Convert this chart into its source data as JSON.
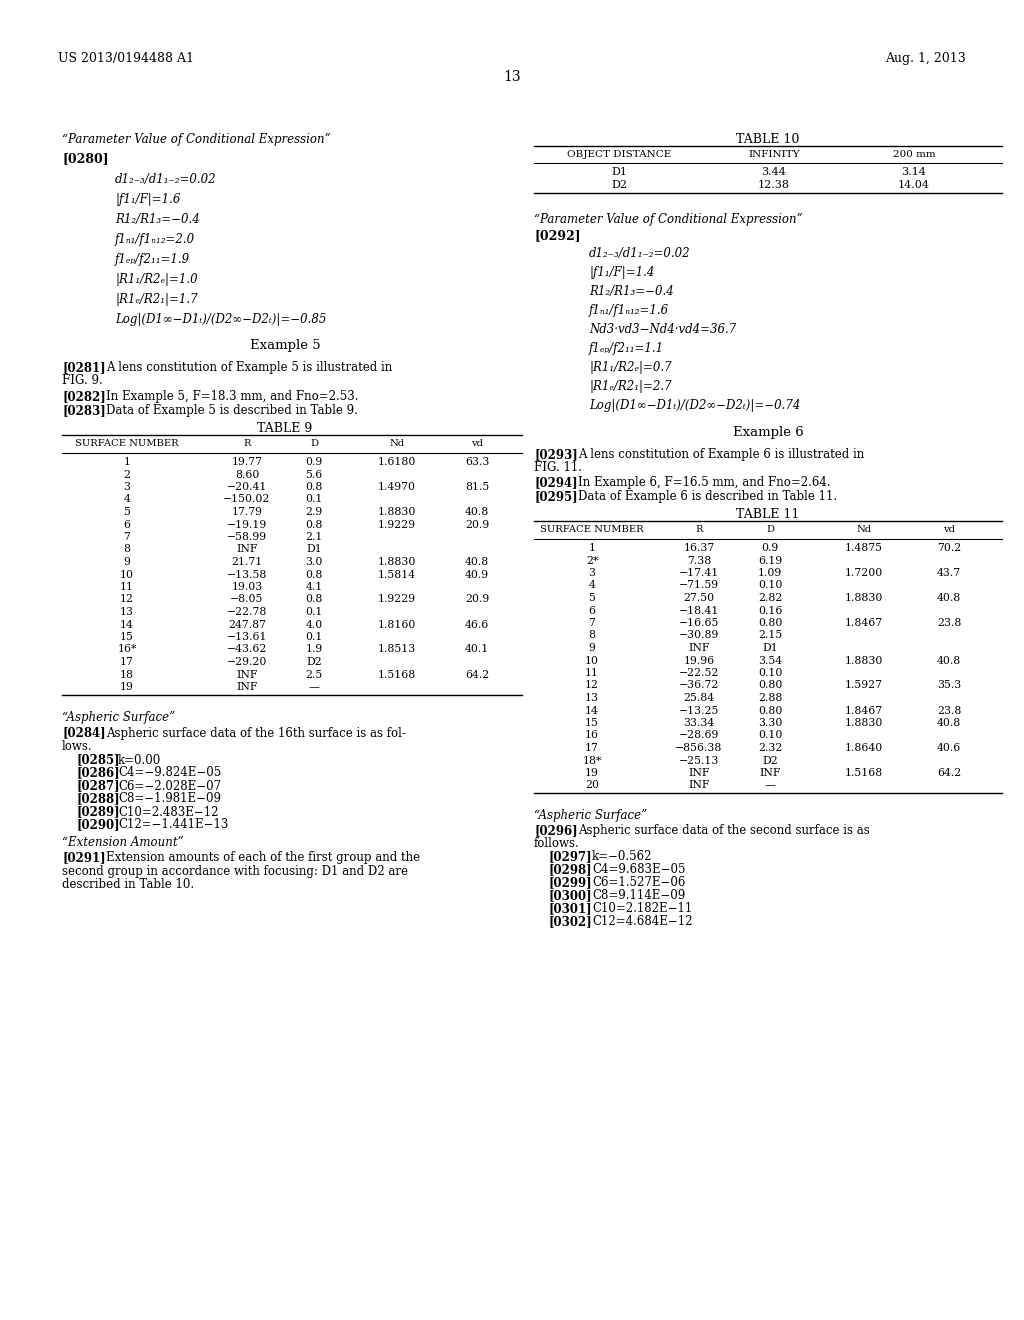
{
  "page_header_left": "US 2013/0194488 A1",
  "page_header_right": "Aug. 1, 2013",
  "page_number": "13",
  "bg_color": "#ffffff",
  "left_col": {
    "section1_title": "“Parameter Value of Conditional Expression”",
    "section1_tag": "[0280]",
    "section1_items": [
      "d1₂₋₃/d1₁₋₂=0.02",
      "|f1₁/F|=1.6",
      "R1₂/R1₃=−0.4",
      "f1ₙ₁/f1ₙ₁₂=2.0",
      "f1ₑₚ/f2₁₁=1.9",
      "|R1₁/R2ₑ|=1.0",
      "|R1ₑ/R2₁|=1.7",
      "Log|(D1∞−D1ₜ)/(D2∞−D2ₜ)|=−0.85"
    ],
    "example5_title": "Example 5",
    "table9_title": "TABLE 9",
    "table9_headers": [
      "SURFACE NUMBER",
      "R",
      "D",
      "Nd",
      "vd"
    ],
    "table9_rows": [
      [
        "1",
        "19.77",
        "0.9",
        "1.6180",
        "63.3"
      ],
      [
        "2",
        "8.60",
        "5.6",
        "",
        ""
      ],
      [
        "3",
        "−20.41",
        "0.8",
        "1.4970",
        "81.5"
      ],
      [
        "4",
        "−150.02",
        "0.1",
        "",
        ""
      ],
      [
        "5",
        "17.79",
        "2.9",
        "1.8830",
        "40.8"
      ],
      [
        "6",
        "−19.19",
        "0.8",
        "1.9229",
        "20.9"
      ],
      [
        "7",
        "−58.99",
        "2.1",
        "",
        ""
      ],
      [
        "8",
        "INF",
        "D1",
        "",
        ""
      ],
      [
        "9",
        "21.71",
        "3.0",
        "1.8830",
        "40.8"
      ],
      [
        "10",
        "−13.58",
        "0.8",
        "1.5814",
        "40.9"
      ],
      [
        "11",
        "19.03",
        "4.1",
        "",
        ""
      ],
      [
        "12",
        "−8.05",
        "0.8",
        "1.9229",
        "20.9"
      ],
      [
        "13",
        "−22.78",
        "0.1",
        "",
        ""
      ],
      [
        "14",
        "247.87",
        "4.0",
        "1.8160",
        "46.6"
      ],
      [
        "15",
        "−13.61",
        "0.1",
        "",
        ""
      ],
      [
        "16*",
        "−43.62",
        "1.9",
        "1.8513",
        "40.1"
      ],
      [
        "17",
        "−29.20",
        "D2",
        "",
        ""
      ],
      [
        "18",
        "INF",
        "2.5",
        "1.5168",
        "64.2"
      ],
      [
        "19",
        "INF",
        "—",
        "",
        ""
      ]
    ],
    "aspheric_title": "“Aspheric Surface”",
    "aspheric_items": [
      [
        "[0285]",
        "k=0.00"
      ],
      [
        "[0286]",
        "C4=−9.824E−05"
      ],
      [
        "[0287]",
        "C6=−2.028E−07"
      ],
      [
        "[0288]",
        "C8=−1.981E−09"
      ],
      [
        "[0289]",
        "C10=2.483E−12"
      ],
      [
        "[0290]",
        "C12=−1.441E−13"
      ]
    ],
    "extension_title": "“Extension Amount”"
  },
  "right_col": {
    "table10_title": "TABLE 10",
    "table10_headers": [
      "OBJECT DISTANCE",
      "INFINITY",
      "200 mm"
    ],
    "table10_rows": [
      [
        "D1",
        "3.44",
        "3.14"
      ],
      [
        "D2",
        "12.38",
        "14.04"
      ]
    ],
    "section2_title": "“Parameter Value of Conditional Expression”",
    "section2_tag": "[0292]",
    "section2_items": [
      "d1₂₋₃/d1₁₋₂=0.02",
      "|f1₁/F|=1.4",
      "R1₂/R1₃=−0.4",
      "f1ₙ₁/f1ₙ₁₂=1.6",
      "Nd3·vd3−Nd4·vd4=36.7",
      "f1ₑₚ/f2₁₁=1.1",
      "|R1₁/R2ₑ|=0.7",
      "|R1ₑ/R2₁|=2.7",
      "Log|(D1∞−D1ₜ)/(D2∞−D2ₜ)|=−0.74"
    ],
    "example6_title": "Example 6",
    "table11_title": "TABLE 11",
    "table11_headers": [
      "SURFACE NUMBER",
      "R",
      "D",
      "Nd",
      "vd"
    ],
    "table11_rows": [
      [
        "1",
        "16.37",
        "0.9",
        "1.4875",
        "70.2"
      ],
      [
        "2*",
        "7.38",
        "6.19",
        "",
        ""
      ],
      [
        "3",
        "−17.41",
        "1.09",
        "1.7200",
        "43.7"
      ],
      [
        "4",
        "−71.59",
        "0.10",
        "",
        ""
      ],
      [
        "5",
        "27.50",
        "2.82",
        "1.8830",
        "40.8"
      ],
      [
        "6",
        "−18.41",
        "0.16",
        "",
        ""
      ],
      [
        "7",
        "−16.65",
        "0.80",
        "1.8467",
        "23.8"
      ],
      [
        "8",
        "−30.89",
        "2.15",
        "",
        ""
      ],
      [
        "9",
        "INF",
        "D1",
        "",
        ""
      ],
      [
        "10",
        "19.96",
        "3.54",
        "1.8830",
        "40.8"
      ],
      [
        "11",
        "−22.52",
        "0.10",
        "",
        ""
      ],
      [
        "12",
        "−36.72",
        "0.80",
        "1.5927",
        "35.3"
      ],
      [
        "13",
        "25.84",
        "2.88",
        "",
        ""
      ],
      [
        "14",
        "−13.25",
        "0.80",
        "1.8467",
        "23.8"
      ],
      [
        "15",
        "33.34",
        "3.30",
        "1.8830",
        "40.8"
      ],
      [
        "16",
        "−28.69",
        "0.10",
        "",
        ""
      ],
      [
        "17",
        "−856.38",
        "2.32",
        "1.8640",
        "40.6"
      ],
      [
        "18*",
        "−25.13",
        "D2",
        "",
        ""
      ],
      [
        "19",
        "INF",
        "INF",
        "1.5168",
        "64.2"
      ],
      [
        "20",
        "INF",
        "—",
        "",
        ""
      ]
    ],
    "aspheric2_title": "“Aspheric Surface”",
    "aspheric2_items": [
      [
        "[0297]",
        "k=−0.562"
      ],
      [
        "[0298]",
        "C4=9.683E−05"
      ],
      [
        "[0299]",
        "C6=1.527E−06"
      ],
      [
        "[0300]",
        "C8=9.114E−09"
      ],
      [
        "[0301]",
        "C10=2.182E−11"
      ],
      [
        "[0302]",
        "C12=4.684E−12"
      ]
    ]
  }
}
